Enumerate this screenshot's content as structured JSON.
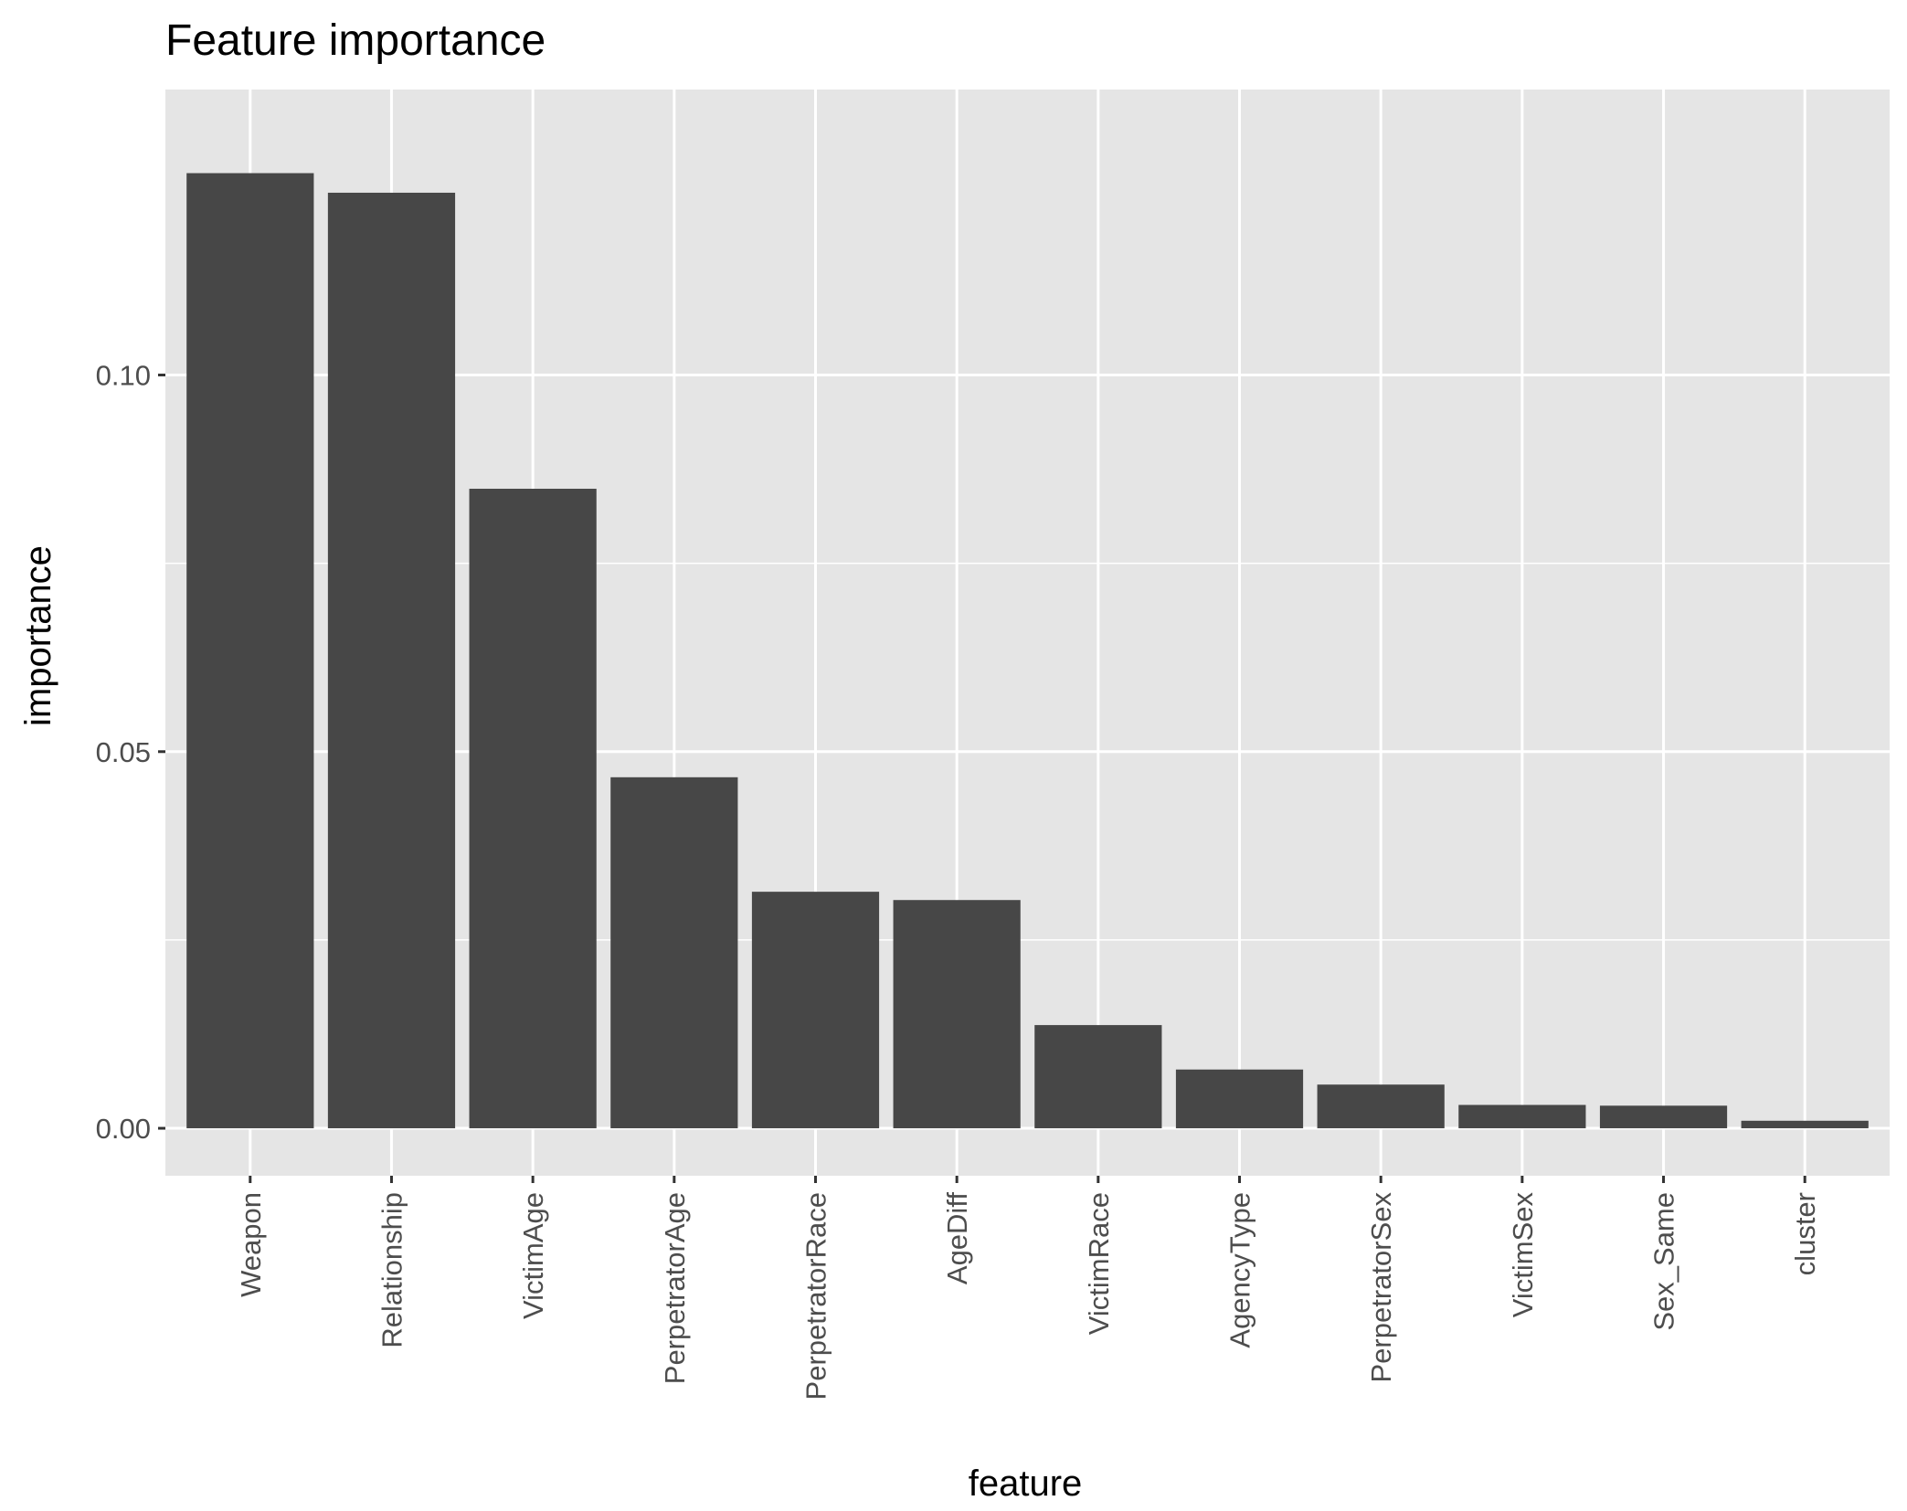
{
  "chart_data": {
    "type": "bar",
    "title": "Feature importance",
    "xlabel": "feature",
    "ylabel": "importance",
    "categories": [
      "Weapon",
      "Relationship",
      "VictimAge",
      "PerpetratorAge",
      "PerpetratorRace",
      "AgeDiff",
      "VictimRace",
      "AgencyType",
      "PerpetratorSex",
      "VictimSex",
      "Sex_Same",
      "cluster"
    ],
    "values": [
      0.1268,
      0.1242,
      0.0849,
      0.0466,
      0.0314,
      0.0303,
      0.0137,
      0.0078,
      0.0058,
      0.0031,
      0.003,
      0.001
    ],
    "ylim": [
      -0.0063,
      0.1379
    ],
    "yticks": [
      0.0,
      0.05,
      0.1
    ],
    "ytick_labels": [
      "0.00",
      "0.05",
      "0.10"
    ],
    "grid": true,
    "legend": "none",
    "colors": {
      "bar": "#474747",
      "panel": "#e5e5e5",
      "grid": "#ffffff",
      "tick_label": "#4d4d4d",
      "tick": "#333333"
    }
  }
}
